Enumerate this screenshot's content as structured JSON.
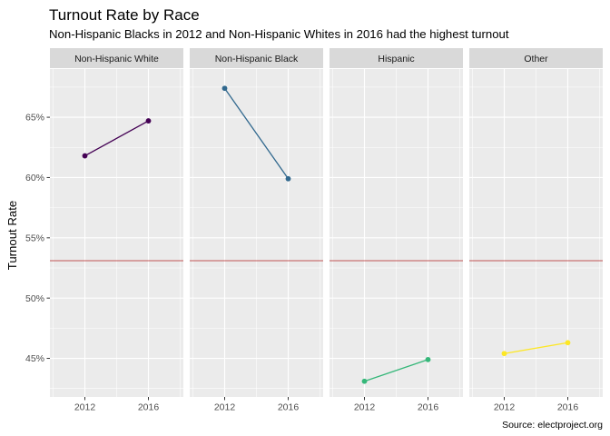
{
  "chart_data": {
    "type": "line",
    "title": "Turnout Rate by Race",
    "subtitle": "Non-Hispanic Blacks in 2012 and Non-Hispanic Whites in 2016 had the highest turnout",
    "xlabel": "",
    "ylabel": "Turnout Rate",
    "caption": "Source: electproject.org",
    "x": [
      2012,
      2016
    ],
    "xticks": [
      "2012",
      "2016"
    ],
    "yticks": [
      "45%",
      "50%",
      "55%",
      "60%",
      "65%"
    ],
    "ylim": [
      0.418,
      0.69
    ],
    "xlim": [
      2009.8,
      2018.2
    ],
    "reference_line": 0.531,
    "reference_color": "#b22222",
    "panel_background": "#ebebeb",
    "strip_background": "#d9d9d9",
    "grid": true,
    "legend": "none",
    "series": [
      {
        "name": "Non-Hispanic White",
        "values": [
          0.618,
          0.647
        ],
        "color": "#440154"
      },
      {
        "name": "Non-Hispanic Black",
        "values": [
          0.674,
          0.599
        ],
        "color": "#31688e"
      },
      {
        "name": "Hispanic",
        "values": [
          0.431,
          0.449
        ],
        "color": "#35b779"
      },
      {
        "name": "Other",
        "values": [
          0.454,
          0.463
        ],
        "color": "#fde725"
      }
    ]
  }
}
